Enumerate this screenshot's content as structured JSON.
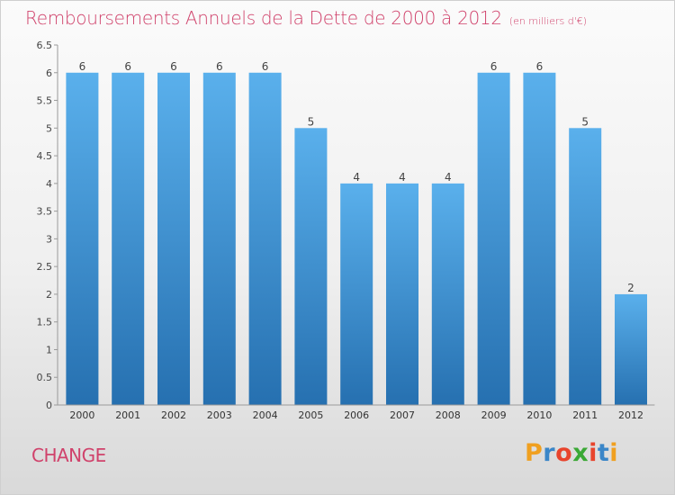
{
  "title": "Remboursements Annuels de la Dette de 2000 à 2012",
  "subtitle": "(en milliers d'€)",
  "commune": "CHANGE",
  "logo": {
    "letters": [
      "P",
      "r",
      "o",
      "x",
      "i",
      "t",
      "i"
    ],
    "colors": [
      "#f0a020",
      "#3a86c8",
      "#e8442c",
      "#3aa835",
      "#e8442c",
      "#3a86c8",
      "#f0a020"
    ]
  },
  "colors": {
    "bar_light": "#5ab0ec",
    "bar_dark": "#2670b0",
    "accent": "#d0426b"
  },
  "chart_data": {
    "type": "bar",
    "categories": [
      "2000",
      "2001",
      "2002",
      "2003",
      "2004",
      "2005",
      "2006",
      "2007",
      "2008",
      "2009",
      "2010",
      "2011",
      "2012"
    ],
    "values": [
      6,
      6,
      6,
      6,
      6,
      5,
      4,
      4,
      4,
      6,
      6,
      5,
      2
    ],
    "data_labels": [
      "6",
      "6",
      "6",
      "6",
      "6",
      "5",
      "4",
      "4",
      "4",
      "6",
      "6",
      "5",
      "2"
    ],
    "y_ticks": [
      "0",
      "0.5",
      "1",
      "1.5",
      "2",
      "2.5",
      "3",
      "3.5",
      "4",
      "4.5",
      "5",
      "5.5",
      "6",
      "6.5"
    ],
    "ylim": [
      0,
      6.5
    ],
    "grid": false
  }
}
